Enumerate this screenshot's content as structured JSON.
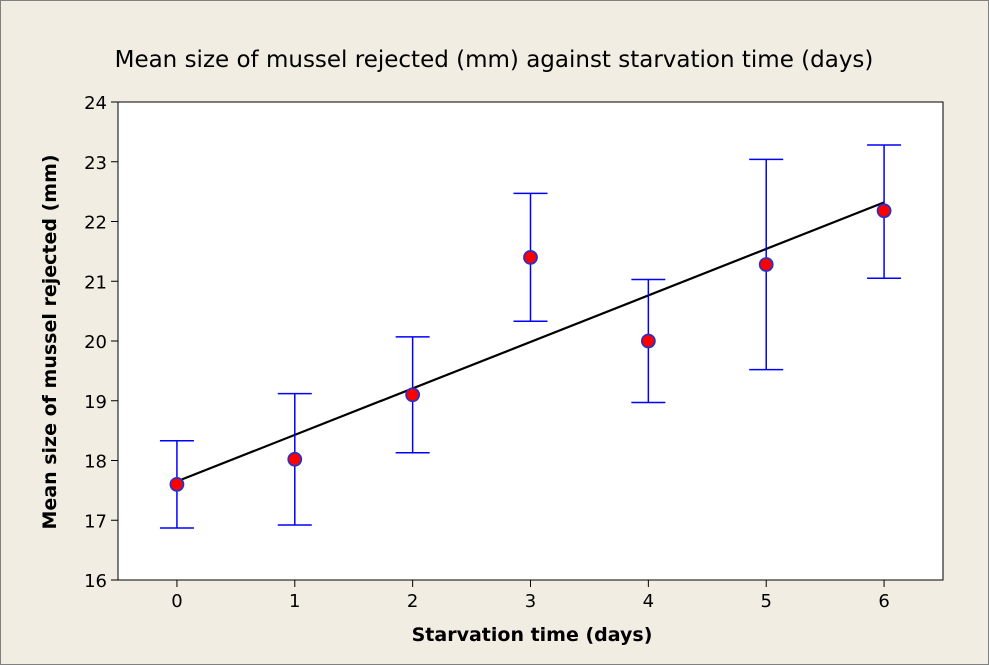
{
  "colors": {
    "frame_background": "#f1ede2",
    "frame_border": "#808080",
    "plot_background": "#ffffff",
    "axis": "#000000",
    "marker_fill": "#ff0000",
    "marker_stroke": "#3030c0",
    "error_bar": "#0000ff",
    "trend_line": "#000000"
  },
  "chart_data": {
    "type": "scatter",
    "title": "Mean size of mussel rejected (mm) against starvation time (days)",
    "xlabel": "Starvation time (days)",
    "ylabel": "Mean size of mussel rejected (mm)",
    "xlim": [
      -0.5,
      6.5
    ],
    "ylim": [
      16,
      24
    ],
    "xticks": [
      0,
      1,
      2,
      3,
      4,
      5,
      6
    ],
    "yticks": [
      16,
      17,
      18,
      19,
      20,
      21,
      22,
      23,
      24
    ],
    "grid": false,
    "points": [
      {
        "x": 0,
        "y": 17.6,
        "lower": 16.87,
        "upper": 18.33
      },
      {
        "x": 1,
        "y": 18.02,
        "lower": 16.92,
        "upper": 19.12
      },
      {
        "x": 2,
        "y": 19.1,
        "lower": 18.13,
        "upper": 20.07
      },
      {
        "x": 3,
        "y": 21.4,
        "lower": 20.33,
        "upper": 22.47
      },
      {
        "x": 4,
        "y": 20.0,
        "lower": 18.97,
        "upper": 21.03
      },
      {
        "x": 5,
        "y": 21.28,
        "lower": 19.52,
        "upper": 23.04
      },
      {
        "x": 6,
        "y": 22.18,
        "lower": 21.05,
        "upper": 23.28
      }
    ],
    "trend_line": {
      "x": [
        0,
        6
      ],
      "y": [
        17.65,
        22.32
      ]
    }
  }
}
